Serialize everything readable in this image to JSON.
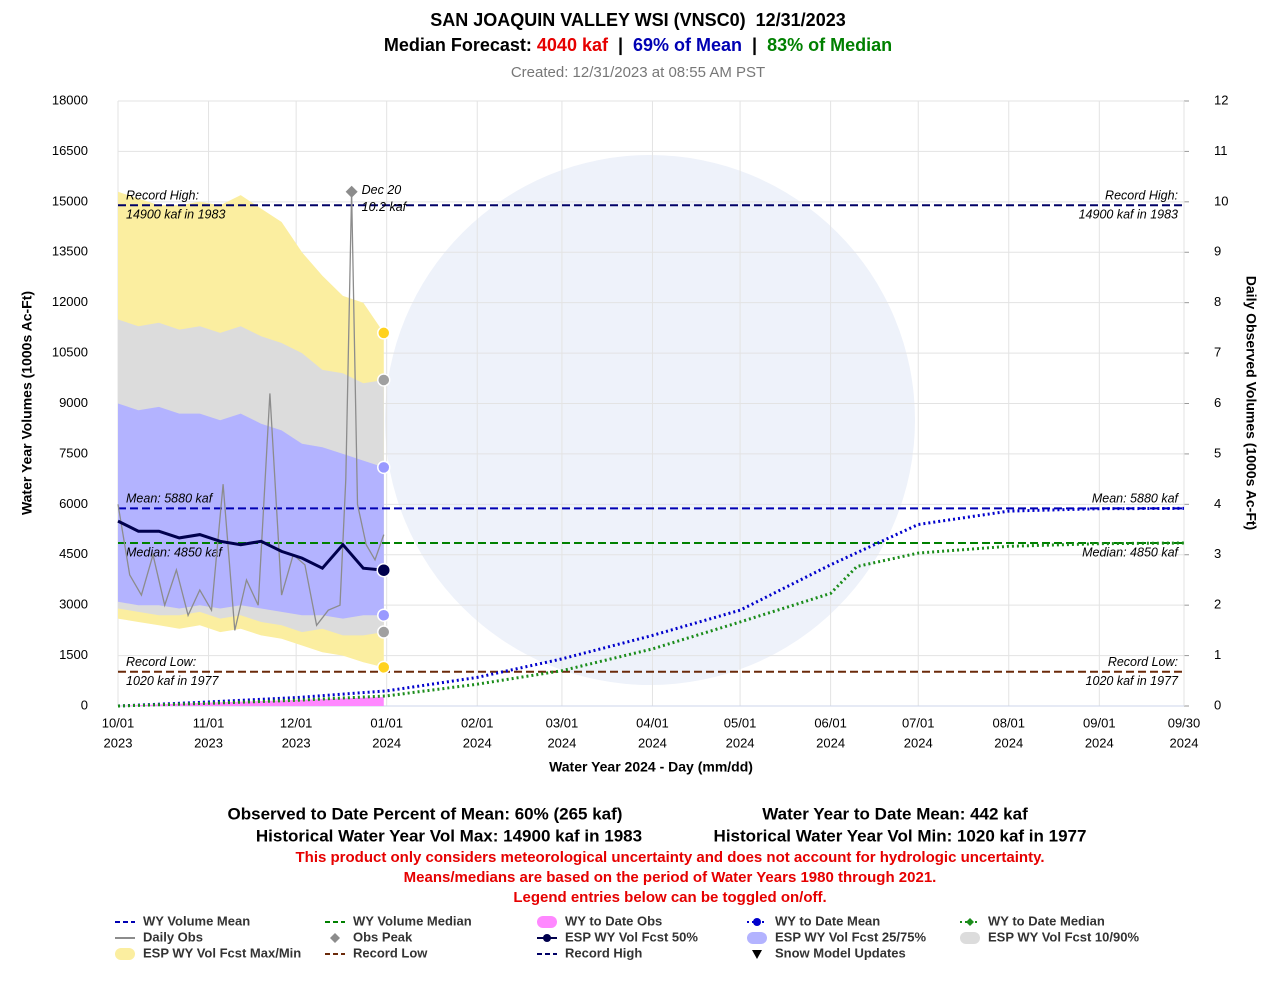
{
  "chart_data": {
    "type": "esp",
    "title": "SAN JOAQUIN VALLEY WSI (VNSC0)  12/31/2023",
    "subtitle_parts": [
      {
        "text": "Median Forecast: ",
        "color": "#000000"
      },
      {
        "text": "4040 kaf",
        "color": "#e60000"
      },
      {
        "text": "  |  ",
        "color": "#000000"
      },
      {
        "text": "69% of Mean",
        "color": "#0000b3"
      },
      {
        "text": "  |  ",
        "color": "#000000"
      },
      {
        "text": "83% of Median",
        "color": "#008000"
      }
    ],
    "created": "Created: 12/31/2023 at 08:55 AM PST",
    "xlabel": "Water Year 2024 - Day (mm/dd)",
    "ylabel": "Water Year Volumes (1000s Ac-Ft)",
    "y2label": "Daily Observed Volumes (1000s Ac-Ft)",
    "xlim": [
      "2023-10-01",
      "2024-09-30"
    ],
    "xticks": [
      {
        "value": "2023-10-01",
        "label": "10/01",
        "year": "2023"
      },
      {
        "value": "2023-11-01",
        "label": "11/01",
        "year": "2023"
      },
      {
        "value": "2023-12-01",
        "label": "12/01",
        "year": "2023"
      },
      {
        "value": "2024-01-01",
        "label": "01/01",
        "year": "2024"
      },
      {
        "value": "2024-02-01",
        "label": "02/01",
        "year": "2024"
      },
      {
        "value": "2024-03-01",
        "label": "03/01",
        "year": "2024"
      },
      {
        "value": "2024-04-01",
        "label": "04/01",
        "year": "2024"
      },
      {
        "value": "2024-05-01",
        "label": "05/01",
        "year": "2024"
      },
      {
        "value": "2024-06-01",
        "label": "06/01",
        "year": "2024"
      },
      {
        "value": "2024-07-01",
        "label": "07/01",
        "year": "2024"
      },
      {
        "value": "2024-08-01",
        "label": "08/01",
        "year": "2024"
      },
      {
        "value": "2024-09-01",
        "label": "09/01",
        "year": "2024"
      },
      {
        "value": "2024-09-30",
        "label": "09/30",
        "year": "2024"
      }
    ],
    "ylim": [
      0,
      18000
    ],
    "yticks": [
      0,
      1500,
      3000,
      4500,
      6000,
      7500,
      9000,
      10500,
      12000,
      13500,
      15000,
      16500,
      18000
    ],
    "y2lim": [
      0,
      12
    ],
    "y2ticks": [
      0,
      1,
      2,
      3,
      4,
      5,
      6,
      7,
      8,
      9,
      10,
      11,
      12
    ],
    "grid": true,
    "series": [
      {
        "name": "WY Volume Mean",
        "kind": "hline",
        "color": "#0000b3",
        "value": 5880,
        "labels": [
          "Mean: 5880 kaf"
        ],
        "label_side": "above"
      },
      {
        "name": "WY Volume Median",
        "kind": "hline",
        "color": "#008000",
        "value": 4850,
        "labels": [
          "Median: 4850 kaf"
        ],
        "label_side": "below"
      },
      {
        "name": "WY to Date Obs",
        "kind": "area",
        "color": "#ff88ff",
        "x": [
          "2023-10-01",
          "2023-11-01",
          "2023-12-01",
          "2023-12-31"
        ],
        "values": [
          0,
          100,
          180,
          265
        ]
      },
      {
        "name": "WY to Date Mean",
        "kind": "line",
        "dash": "dotted",
        "legend_marker": "circle",
        "color": "#0000cc",
        "x": [
          "2023-10-01",
          "2023-11-01",
          "2023-12-01",
          "2024-01-01",
          "2024-02-01",
          "2024-03-01",
          "2024-04-01",
          "2024-05-01",
          "2024-06-01",
          "2024-07-01",
          "2024-08-01",
          "2024-09-01",
          "2024-09-30"
        ],
        "values": [
          0,
          120,
          250,
          450,
          850,
          1400,
          2100,
          2850,
          4200,
          5400,
          5800,
          5870,
          5880
        ]
      },
      {
        "name": "WY to Date Median",
        "kind": "line",
        "dash": "dotted",
        "legend_marker": "diamond",
        "color": "#1a8c1a",
        "x": [
          "2023-10-01",
          "2023-11-01",
          "2023-12-01",
          "2024-01-01",
          "2024-02-01",
          "2024-03-01",
          "2024-04-01",
          "2024-05-01",
          "2024-06-01",
          "2024-06-10",
          "2024-07-01",
          "2024-08-01",
          "2024-09-01",
          "2024-09-30"
        ],
        "values": [
          0,
          80,
          170,
          300,
          650,
          1050,
          1700,
          2500,
          3350,
          4150,
          4550,
          4750,
          4830,
          4850
        ]
      },
      {
        "name": "Daily Obs",
        "kind": "line",
        "dash": "solid",
        "axis": "y2",
        "color": "#8c8c8c",
        "x": [
          "2023-10-01",
          "2023-10-05",
          "2023-10-09",
          "2023-10-13",
          "2023-10-17",
          "2023-10-21",
          "2023-10-25",
          "2023-10-29",
          "2023-11-02",
          "2023-11-06",
          "2023-11-10",
          "2023-11-14",
          "2023-11-18",
          "2023-11-22",
          "2023-11-26",
          "2023-11-30",
          "2023-12-04",
          "2023-12-08",
          "2023-12-12",
          "2023-12-16",
          "2023-12-18",
          "2023-12-20",
          "2023-12-22",
          "2023-12-25",
          "2023-12-28",
          "2023-12-31"
        ],
        "values": [
          4.0,
          2.6,
          2.2,
          3.0,
          2.0,
          2.7,
          1.8,
          2.3,
          1.9,
          4.4,
          1.5,
          2.5,
          2.0,
          6.2,
          2.2,
          3.0,
          2.8,
          1.6,
          1.9,
          2.0,
          4.5,
          10.2,
          4.0,
          3.2,
          2.9,
          3.4
        ]
      },
      {
        "name": "Obs Peak",
        "kind": "marker",
        "axis": "y2",
        "color": "#8c8c8c",
        "x": "2023-12-20",
        "value": 10.2,
        "labels": [
          "Dec 20",
          "10.2 kaf"
        ]
      },
      {
        "name": "ESP WY Vol Fcst 50%",
        "kind": "line",
        "dash": "solid",
        "legend_marker": "circle",
        "end_dot": true,
        "color": "#00004d",
        "x": [
          "2023-10-01",
          "2023-10-08",
          "2023-10-15",
          "2023-10-22",
          "2023-10-29",
          "2023-11-05",
          "2023-11-12",
          "2023-11-19",
          "2023-11-26",
          "2023-12-03",
          "2023-12-10",
          "2023-12-17",
          "2023-12-24",
          "2023-12-31"
        ],
        "values": [
          5500,
          5200,
          5200,
          5000,
          5100,
          4900,
          4800,
          4900,
          4600,
          4400,
          4100,
          4800,
          4100,
          4040
        ]
      },
      {
        "name": "ESP WY Vol Fcst 25/75%",
        "kind": "band",
        "color": "#b3b3ff",
        "dot_color": "#9999ff",
        "x": [
          "2023-10-01",
          "2023-10-08",
          "2023-10-15",
          "2023-10-22",
          "2023-10-29",
          "2023-11-05",
          "2023-11-12",
          "2023-11-19",
          "2023-11-26",
          "2023-12-03",
          "2023-12-10",
          "2023-12-17",
          "2023-12-24",
          "2023-12-31"
        ],
        "upper": [
          9000,
          8800,
          8900,
          8700,
          8700,
          8500,
          8700,
          8400,
          8200,
          7800,
          7700,
          7500,
          7300,
          7100
        ],
        "lower": [
          3100,
          3000,
          3000,
          2900,
          3000,
          2900,
          3000,
          2900,
          2800,
          2700,
          2700,
          2600,
          2700,
          2700
        ]
      },
      {
        "name": "ESP WY Vol Fcst 10/90%",
        "kind": "band",
        "color": "#dcdcdc",
        "dot_color": "#a0a0a0",
        "x": [
          "2023-10-01",
          "2023-10-08",
          "2023-10-15",
          "2023-10-22",
          "2023-10-29",
          "2023-11-05",
          "2023-11-12",
          "2023-11-19",
          "2023-11-26",
          "2023-12-03",
          "2023-12-10",
          "2023-12-17",
          "2023-12-24",
          "2023-12-31"
        ],
        "upper": [
          11500,
          11300,
          11400,
          11200,
          11300,
          11100,
          11300,
          11000,
          10800,
          10500,
          10000,
          9900,
          9600,
          9700
        ],
        "lower": [
          2900,
          2800,
          2700,
          2700,
          2800,
          2600,
          2700,
          2500,
          2400,
          2200,
          2300,
          2100,
          2100,
          2200
        ]
      },
      {
        "name": "ESP WY Vol Fcst Max/Min",
        "kind": "band",
        "color": "#fbeea0",
        "dot_color": "#ffd21f",
        "x": [
          "2023-10-01",
          "2023-10-08",
          "2023-10-15",
          "2023-10-22",
          "2023-10-29",
          "2023-11-05",
          "2023-11-12",
          "2023-11-19",
          "2023-11-26",
          "2023-12-03",
          "2023-12-10",
          "2023-12-17",
          "2023-12-24",
          "2023-12-31"
        ],
        "upper": [
          15300,
          15100,
          14900,
          14900,
          15000,
          14900,
          15200,
          14800,
          14400,
          13500,
          12800,
          12200,
          12000,
          11100
        ],
        "lower": [
          2600,
          2500,
          2400,
          2300,
          2400,
          2200,
          2300,
          2100,
          2000,
          1800,
          1600,
          1500,
          1300,
          1150
        ]
      },
      {
        "name": "Record Low",
        "kind": "hline",
        "color": "#6b2a0a",
        "value": 1020,
        "labels": [
          "Record Low:",
          "1020 kaf in 1977"
        ]
      },
      {
        "name": "Record High",
        "kind": "hline",
        "color": "#000066",
        "value": 14900,
        "labels": [
          "Record High:",
          "14900 kaf in 1983"
        ]
      },
      {
        "name": "Snow Model Updates",
        "kind": "event",
        "color": "#000000"
      }
    ],
    "footer_stats": [
      [
        "Observed to Date Percent of Mean: 60% (265 kaf)",
        "Water Year to Date Mean: 442 kaf"
      ],
      [
        "Historical Water Year Vol Max: 14900 kaf in 1983",
        "Historical Water Year Vol Min: 1020 kaf in 1977"
      ]
    ],
    "notes": [
      "This product only considers meteorological uncertainty and does not account for hydrologic uncertainty.",
      "Means/medians are based on the period of Water Years 1980 through 2021.",
      "Legend entries below can be toggled on/off."
    ]
  }
}
